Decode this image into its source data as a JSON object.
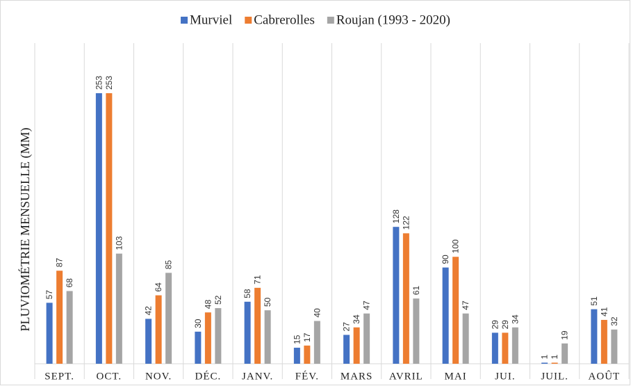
{
  "chart_data": {
    "type": "bar",
    "y_label": "PLUVIOMÉTRIE MENSUELLE (MM)",
    "categories": [
      "SEPT.",
      "OCT.",
      "NOV.",
      "DÉC.",
      "JANV.",
      "FÉV.",
      "MARS",
      "AVRIL",
      "MAI",
      "JUI.",
      "JUIL.",
      "AOÛT"
    ],
    "series": [
      {
        "name": "Murviel",
        "color": "#4472c4",
        "values": [
          57,
          253,
          42,
          30,
          58,
          15,
          27,
          128,
          90,
          29,
          1,
          51
        ]
      },
      {
        "name": "Cabrerolles",
        "color": "#ed7d31",
        "values": [
          87,
          253,
          64,
          48,
          71,
          17,
          34,
          122,
          100,
          29,
          1,
          41
        ]
      },
      {
        "name": "Roujan (1993 - 2020)",
        "color": "#a5a5a5",
        "values": [
          68,
          103,
          85,
          52,
          50,
          40,
          47,
          61,
          47,
          34,
          19,
          32
        ]
      }
    ],
    "legend": "top",
    "data_labels": true
  }
}
